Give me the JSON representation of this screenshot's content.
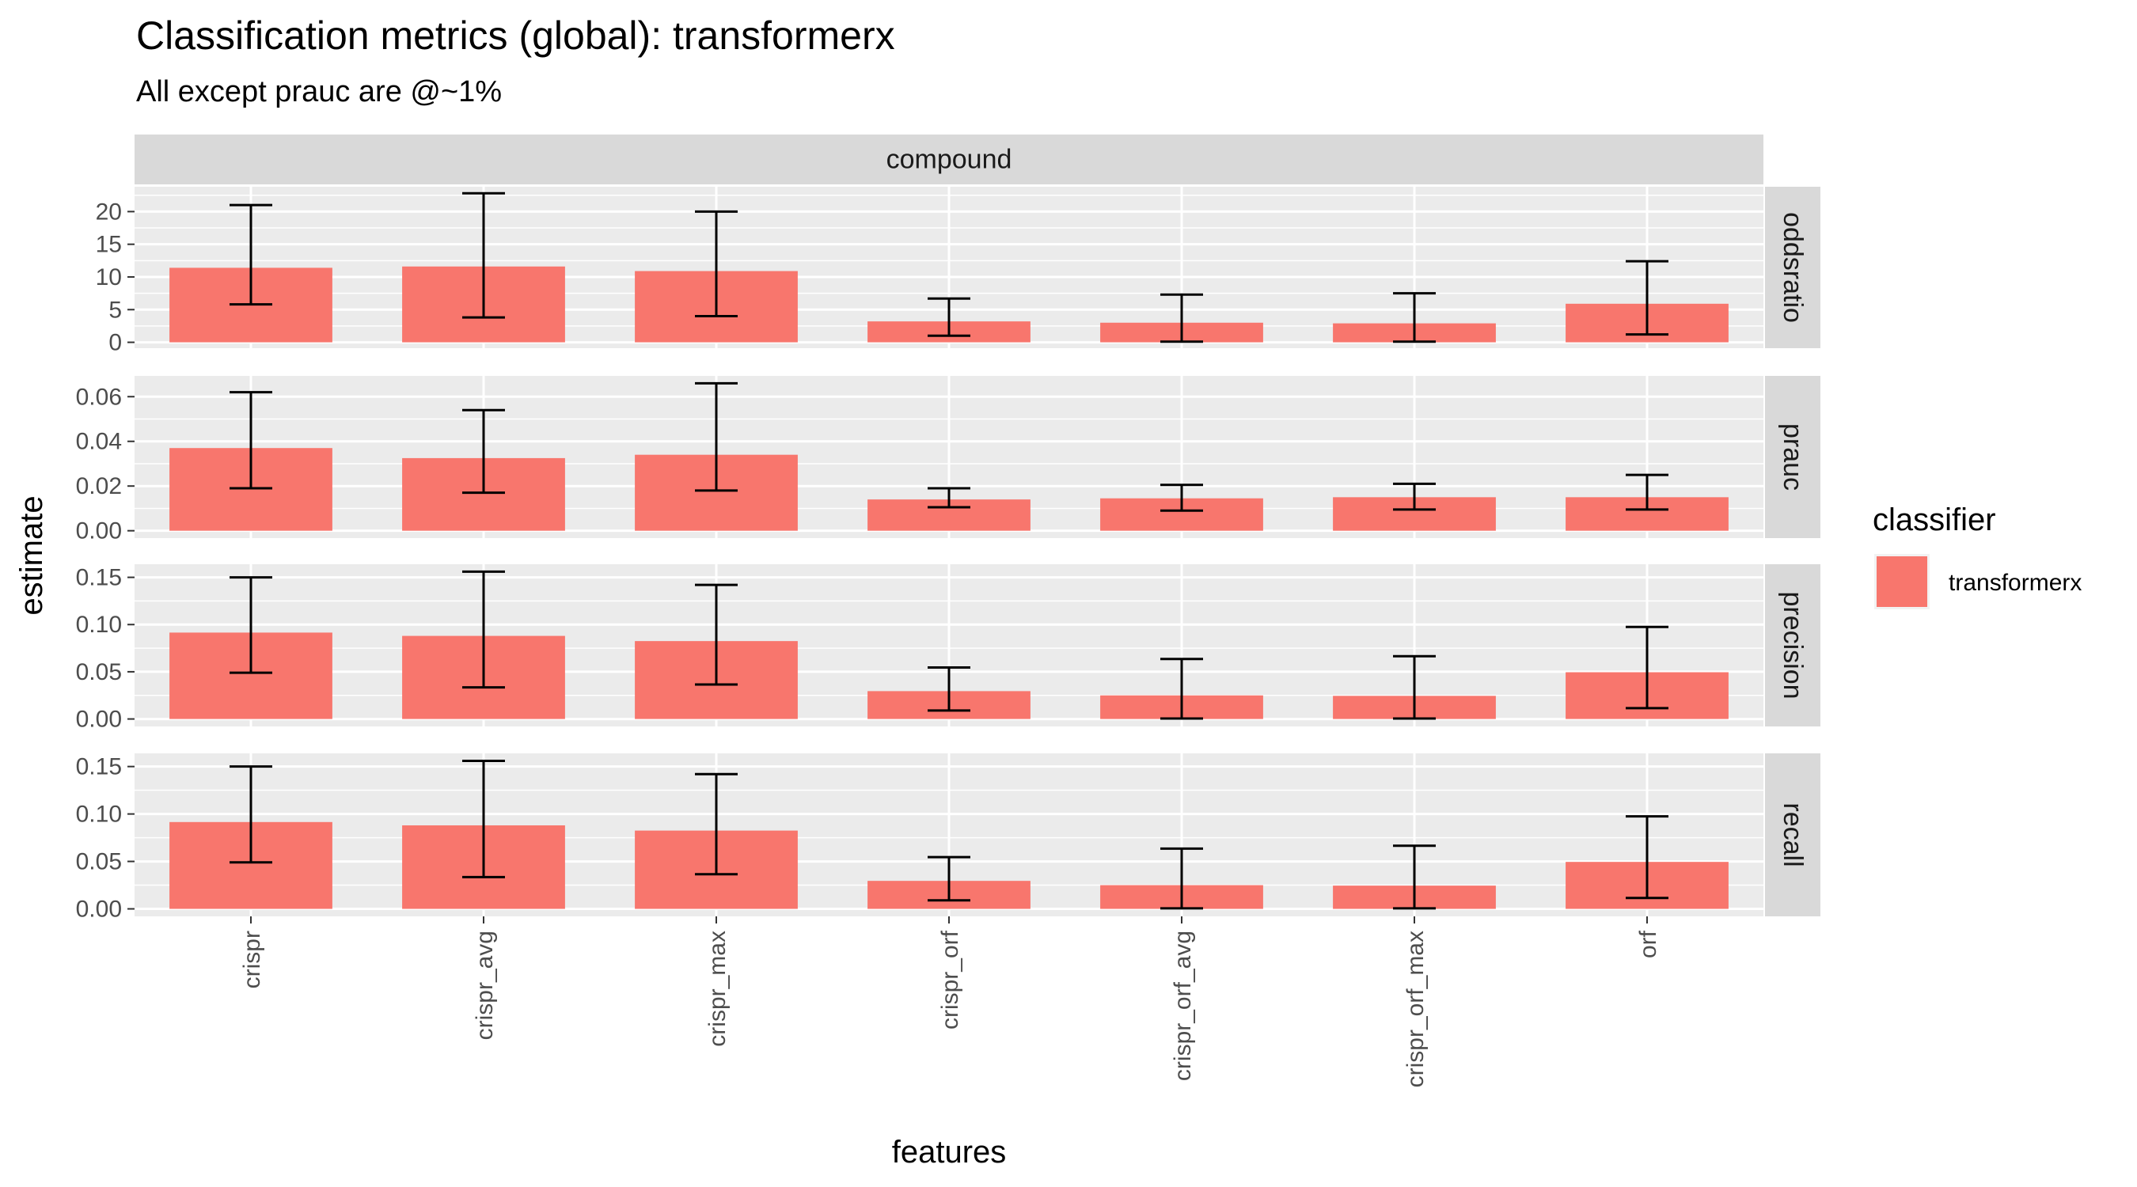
{
  "chart_data": {
    "type": "bar",
    "title": "Classification metrics (global): transformerx",
    "subtitle": "All except prauc are @~1%",
    "xlabel": "features",
    "ylabel": "estimate",
    "facet_column": "compound",
    "categories": [
      "crispr",
      "crispr_avg",
      "crispr_max",
      "crispr_orf",
      "crispr_orf_avg",
      "crispr_orf_max",
      "orf"
    ],
    "legend": {
      "title": "classifier",
      "position": "right",
      "entries": [
        {
          "label": "transformerx",
          "color": "#F8766D"
        }
      ]
    },
    "grid": true,
    "panels": [
      {
        "name": "oddsratio",
        "ylim": [
          -0.9,
          23.8
        ],
        "ticks": [
          0,
          5,
          10,
          15,
          20
        ],
        "tick_labels": [
          "0",
          "5",
          "10",
          "15",
          "20"
        ],
        "values": [
          11.4,
          11.6,
          10.9,
          3.2,
          3.0,
          2.9,
          5.9
        ],
        "lower": [
          5.8,
          3.8,
          4.0,
          1.0,
          0.1,
          0.1,
          1.2
        ],
        "upper": [
          21.0,
          22.8,
          20.0,
          6.7,
          7.3,
          7.5,
          12.4
        ]
      },
      {
        "name": "prauc",
        "ylim": [
          -0.0033,
          0.0693
        ],
        "ticks": [
          0.0,
          0.02,
          0.04,
          0.06
        ],
        "tick_labels": [
          "0.00",
          "0.02",
          "0.04",
          "0.06"
        ],
        "values": [
          0.037,
          0.0325,
          0.034,
          0.014,
          0.0145,
          0.015,
          0.015
        ],
        "lower": [
          0.019,
          0.017,
          0.018,
          0.0105,
          0.009,
          0.0095,
          0.0095
        ],
        "upper": [
          0.062,
          0.054,
          0.066,
          0.019,
          0.0205,
          0.021,
          0.025
        ]
      },
      {
        "name": "precision",
        "ylim": [
          -0.0079,
          0.1639
        ],
        "ticks": [
          0.0,
          0.05,
          0.1,
          0.15
        ],
        "tick_labels": [
          "0.00",
          "0.05",
          "0.10",
          "0.15"
        ],
        "values": [
          0.0915,
          0.088,
          0.0825,
          0.0295,
          0.025,
          0.0245,
          0.0495
        ],
        "lower": [
          0.049,
          0.0335,
          0.0365,
          0.009,
          0.0005,
          0.0005,
          0.0115
        ],
        "upper": [
          0.15,
          0.156,
          0.142,
          0.0545,
          0.0635,
          0.0665,
          0.0975
        ]
      },
      {
        "name": "recall",
        "ylim": [
          -0.0079,
          0.1639
        ],
        "ticks": [
          0.0,
          0.05,
          0.1,
          0.15
        ],
        "tick_labels": [
          "0.00",
          "0.05",
          "0.10",
          "0.15"
        ],
        "values": [
          0.0915,
          0.088,
          0.0825,
          0.0295,
          0.025,
          0.0245,
          0.0495
        ],
        "lower": [
          0.049,
          0.0335,
          0.0365,
          0.009,
          0.0005,
          0.0005,
          0.0115
        ],
        "upper": [
          0.15,
          0.156,
          0.142,
          0.0545,
          0.0635,
          0.0665,
          0.0975
        ]
      }
    ],
    "colors": {
      "bar": "#F8766D",
      "panel_bg": "#EBEBEB",
      "grid": "#FFFFFF",
      "strip_bg": "#D9D9D9",
      "error_bar": "#000000"
    }
  }
}
